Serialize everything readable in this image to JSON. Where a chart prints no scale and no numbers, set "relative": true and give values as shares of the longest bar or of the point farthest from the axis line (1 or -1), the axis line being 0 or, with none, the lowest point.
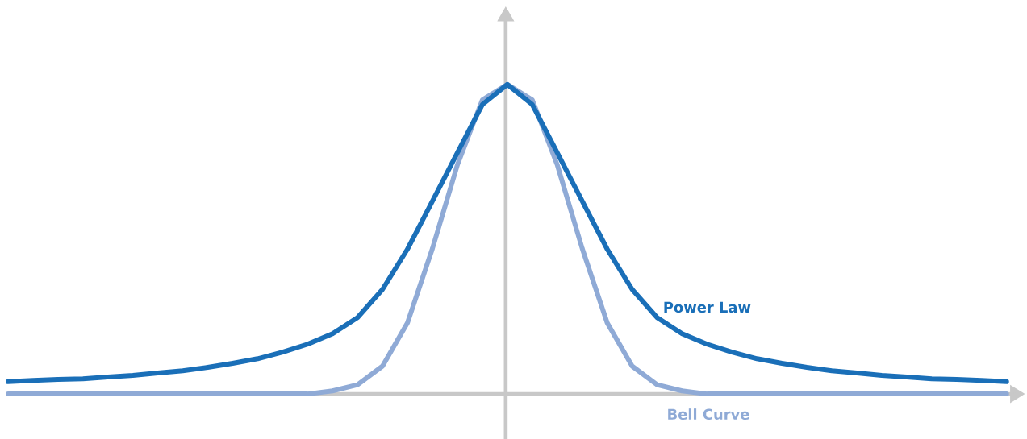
{
  "chart_data": {
    "type": "line",
    "relative": true,
    "marker": "none",
    "categories": [
      null,
      null,
      null,
      null,
      null,
      null,
      null,
      null,
      null,
      null,
      null,
      null,
      null,
      null,
      null,
      null,
      null,
      null,
      null,
      null,
      null,
      null,
      null,
      null,
      null,
      null,
      null,
      null,
      null,
      null,
      null,
      null,
      null,
      null,
      null,
      null,
      null,
      null,
      null,
      null,
      null
    ],
    "series": [
      {
        "name": "Bell Curve",
        "color": "#8faad6",
        "values": [
          0,
          0,
          0,
          0,
          0,
          0,
          0,
          0,
          0,
          0,
          0,
          0,
          0,
          0.01,
          0.03,
          0.09,
          0.23,
          0.47,
          0.74,
          0.95,
          1.0,
          0.95,
          0.74,
          0.47,
          0.23,
          0.09,
          0.03,
          0.01,
          0,
          0,
          0,
          0,
          0,
          0,
          0,
          0,
          0,
          0,
          0,
          0,
          0
        ]
      },
      {
        "name": "Power Law",
        "color": "#1a6fb8",
        "values": [
          0.04,
          0.044,
          0.047,
          0.049,
          0.055,
          0.06,
          0.068,
          0.075,
          0.086,
          0.099,
          0.114,
          0.135,
          0.161,
          0.195,
          0.247,
          0.338,
          0.468,
          0.623,
          0.779,
          0.935,
          1.0,
          0.935,
          0.779,
          0.623,
          0.468,
          0.338,
          0.247,
          0.195,
          0.161,
          0.135,
          0.114,
          0.099,
          0.086,
          0.075,
          0.068,
          0.06,
          0.055,
          0.049,
          0.047,
          0.044,
          0.04
        ]
      }
    ]
  }
}
